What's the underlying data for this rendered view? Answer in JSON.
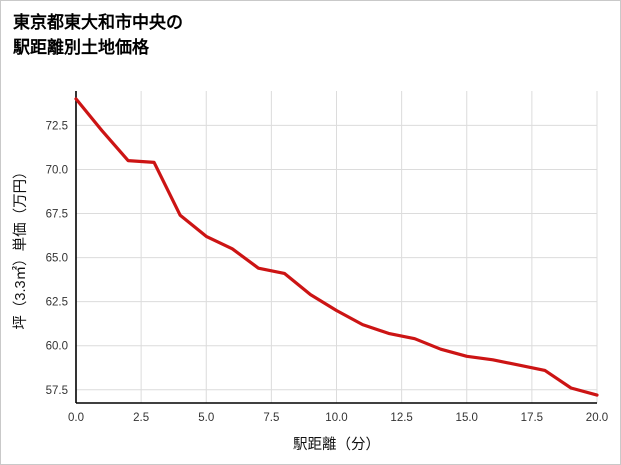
{
  "page": {
    "title_line1": "東京都東大和市中央の",
    "title_line2": "駅距離別土地価格"
  },
  "chart_data": {
    "type": "line",
    "title": "東京都東大和市中央の駅距離別土地価格",
    "xlabel": "駅距離（分）",
    "ylabel": "坪（3.3㎡）単価（万円）",
    "x": [
      0,
      1,
      2,
      3,
      4,
      5,
      6,
      7,
      8,
      9,
      10,
      11,
      12,
      13,
      14,
      15,
      16,
      17,
      18,
      19,
      20
    ],
    "y": [
      74.0,
      72.2,
      70.5,
      70.4,
      67.4,
      66.2,
      65.5,
      64.4,
      64.1,
      62.9,
      62.0,
      61.2,
      60.7,
      60.4,
      59.8,
      59.4,
      59.2,
      58.9,
      58.6,
      57.6,
      57.2
    ],
    "xlim": [
      0,
      20
    ],
    "ylim": [
      56.75,
      74.45
    ],
    "x_ticks": [
      0.0,
      2.5,
      5.0,
      7.5,
      10.0,
      12.5,
      15.0,
      17.5,
      20.0
    ],
    "x_tick_labels": [
      "0.0",
      "2.5",
      "5.0",
      "7.5",
      "10.0",
      "12.5",
      "15.0",
      "17.5",
      "20.0"
    ],
    "y_ticks": [
      57.5,
      60.0,
      62.5,
      65.0,
      67.5,
      70.0,
      72.5
    ],
    "y_tick_labels": [
      "57.5",
      "60.0",
      "62.5",
      "65.0",
      "67.5",
      "70.0",
      "72.5"
    ],
    "grid": true,
    "legend_position": "none",
    "line_color": "#cc1414",
    "grid_color": "#dcdcdc",
    "spine_color": "#000000"
  }
}
